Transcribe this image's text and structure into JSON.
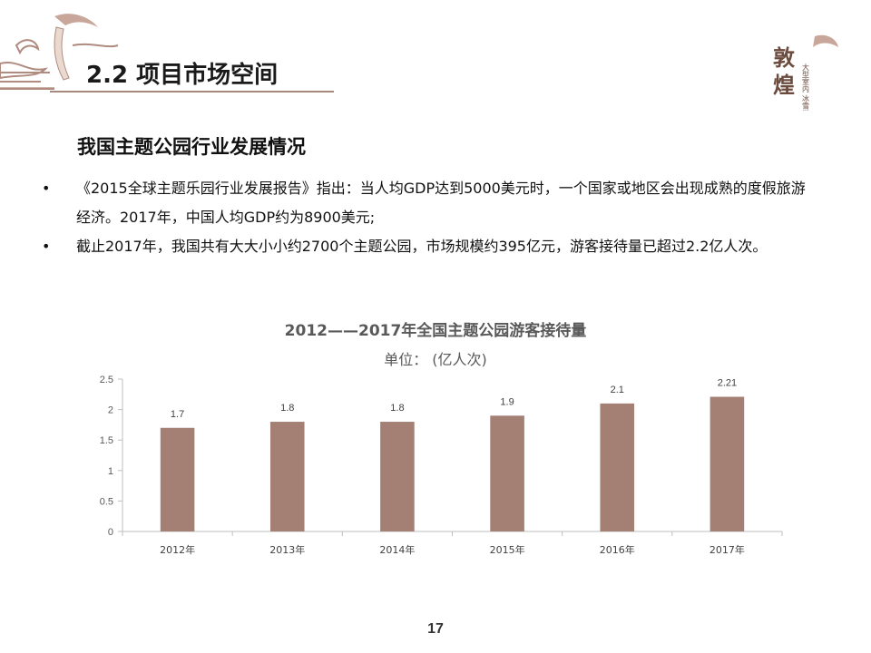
{
  "header": {
    "section_title": "2.2 项目市场空间"
  },
  "logo": {
    "name": "dunhuang-logo",
    "text": "敦煌",
    "tagline": "大型室内 冰雪世界项目"
  },
  "content": {
    "subheading": "我国主题公园行业发展情况",
    "bullets": [
      {
        "marker": "•",
        "text": "《2015全球主题乐园行业发展报告》指出：当人均GDP达到5000美元时，一个国家或地区会出现成熟的度假旅游经济。2017年，中国人均GDP约为8900美元;"
      },
      {
        "marker": "•",
        "text": "截止2017年，我国共有大大小小约2700个主题公园，市场规模约395亿元，游客接待量已超过2.2亿人次。"
      }
    ]
  },
  "chart_data": {
    "type": "bar",
    "title": "2012——2017年全国主题公园游客接待量",
    "subtitle": "单位：  (亿人次)",
    "categories": [
      "2012年",
      "2013年",
      "2014年",
      "2015年",
      "2016年",
      "2017年"
    ],
    "values": [
      1.7,
      1.8,
      1.8,
      1.9,
      2.1,
      2.21
    ],
    "data_labels": [
      "1.7",
      "1.8",
      "1.8",
      "1.9",
      "2.1",
      "2.21"
    ],
    "y_ticks": [
      "0",
      "0.5",
      "1",
      "1.5",
      "2",
      "2.5"
    ],
    "ylim": [
      0,
      2.5
    ],
    "bar_color": "#a37f74",
    "grid": false,
    "legend": "none"
  },
  "footer": {
    "page_number": "17"
  }
}
